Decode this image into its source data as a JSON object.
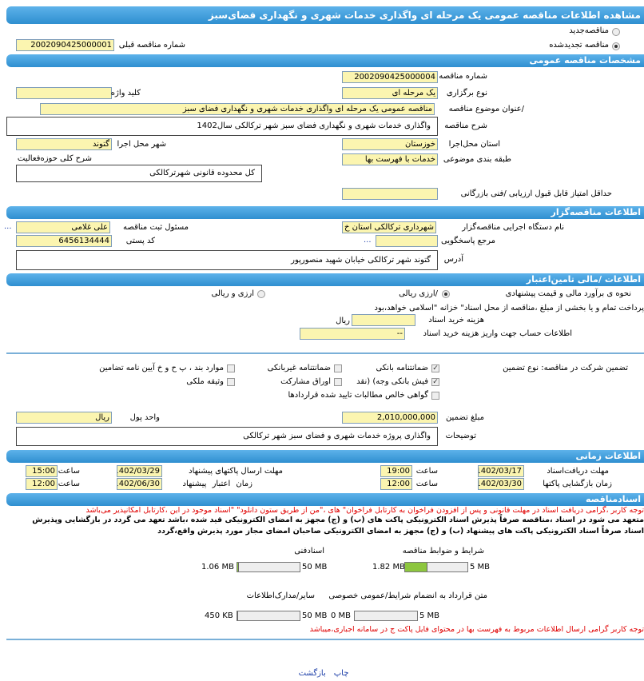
{
  "title": "مشاهده اطلاعات مناقصه عمومی یک مرحله ای واگذاری خدمات شهری و نگهداری فضای‌سبز",
  "tender_type": {
    "new_label": "مناقصه‌جدید",
    "renewed_label": "مناقصه تجدیدشده",
    "selected": "renewed",
    "prev_number_label": "شماره مناقصه قبلی",
    "prev_number": "2002090425000001"
  },
  "general": {
    "header": "مشخصات مناقصه عمومی",
    "number_label": "شماره مناقصه",
    "number": "2002090425000004",
    "holding_label": "نوع برگزاری",
    "holding": "یک مرحله ای",
    "keyword_label": "کلید واژه",
    "keyword": "",
    "subject_label": "/عنوان موضوع مناقصه",
    "subject": "مناقصه عمومی یک مرحله ای واگذاری خدمات شهری و نگهداری فضای سبز",
    "desc_label": "شرح مناقصه",
    "desc": "واگذاری خدمات شهری و نگهداری فضای سبز شهر ترکالکی سال1402",
    "province_label": "استان محل‌اجرا",
    "province": "خوزستان",
    "city_label": "شهر محل اجرا",
    "city": "گتوند",
    "category_label": "طبقه بندی موضوعی",
    "category": "خدمات با فهرست بها",
    "scope_label": "شرح کلی حوزه‌فعالیت",
    "scope": "کل محدوده قانونی شهرترکالکی",
    "min_score_label": "حداقل امتیاز قابل قبول ارزیابی /فنی بازرگانی",
    "min_score": ""
  },
  "organizer": {
    "header": "اطلاعات مناقصه‌گزار",
    "org_label": "نام دستگاه اجرایی مناقصه‌گزار",
    "org": "شهرداری ترکالکی استان خ",
    "responsible_label": "مسئول ثبت مناقصه",
    "responsible": "علی غلامی",
    "more": "...",
    "ref_label": "مرجع پاسخگویی",
    "ref": "",
    "postal_label": "کد پستی",
    "postal": "6456134444",
    "address_label": "آدرس",
    "address": "گتوند شهر ترکالکی خیابان شهید منصورپور"
  },
  "finance": {
    "header": "اطلاعات /مالی تامین‌اعتبار",
    "estimate_label": "نحوه ی برآورد مالی و قیمت پیشنهادی",
    "rial_label": "/ارزی ریالی",
    "fx_label": "ارزی و ریالی",
    "selected": "rial",
    "treasury_note": "پرداخت تمام و یا بخشی از مبلغ ،مناقصه از محل اسناد\" خزانه \"اسلامی خواهد،بود",
    "doc_cost_label": "هزینه خرید اسناد",
    "doc_cost": "",
    "doc_cost_unit": "ریال",
    "account_label": "اطلاعات حساب جهت واریز هزینه خرید اسناد",
    "account": "--",
    "guarantee_label": "تضمین شرکت در مناقصه: نوع تضمین",
    "guarantee_options": [
      {
        "label": "ضمانتنامه بانکی",
        "checked": true
      },
      {
        "label": "ضمانتنامه غیربانکی",
        "checked": false
      },
      {
        "label": "موارد بند ، پ ح و خ آیین نامه تضامین",
        "checked": false
      },
      {
        "label": "فیش بانکی وجه) (نقد",
        "checked": true
      },
      {
        "label": "اوراق مشارکت",
        "checked": false
      },
      {
        "label": "وثیقه ملکی",
        "checked": false
      },
      {
        "label": "گواهی خالص مطالبات تایید شده قراردادها",
        "checked": false
      }
    ],
    "amount_label": "مبلغ تضمین",
    "amount": "2,010,000,000",
    "currency_label": "واحد پول",
    "currency": "ریال",
    "notes_label": "توضیحات",
    "notes": "واگذاری پروژه خدمات شهری و فضای سبز شهر ترکالکی"
  },
  "timing": {
    "header": "اطلاعات زمانی",
    "doc_deadline_label": "مهلت دریافت‌اسناد",
    "doc_deadline_date": "1402/03/17",
    "doc_deadline_time": "19:00",
    "send_deadline_label": "مهلت ارسال پاکتهای پیشنهاد",
    "send_deadline_date": "1402/03/29",
    "send_deadline_time": "15:00",
    "opening_label": "زمان بازگشایی پاکتها",
    "opening_date": "1402/03/30",
    "opening_time": "12:00",
    "validity_label": "زمان اعتبار پیشنهاد",
    "validity_date": "1402/06/30",
    "validity_time": "12:00",
    "time_label": "ساعت"
  },
  "documents": {
    "header": "اسنادمناقصه",
    "red_note": "توجه کاربر ،گرامی دریافت اسناد در مهلت قانونی و پس از افزودن فراخوان به کارتابل فراخوان\" های ،\"من از طریق ستون دانلود\" \"اسناد موجود در این ،کارتابل امکانپذیر می‌باشد",
    "commit_line1": "متعهد می شود در اسناد ،مناقصه صرفاً پذیرش اسناد الکترونیکی پاکت های (ب) و (ج) مجهز به امضای الکترونیکی قید شده ،باشد تعهد می گردد در بازگشایی وپذیرش",
    "commit_line2": "اسناد صرفاً اسناد الکترونیکی پاکت های پیشنهاد (ب) و (ج) مجهز به امضای الکترونیکی صاحبان امضای مجاز مورد پذیرش واقع،گردد",
    "files": [
      {
        "label": "شرایط و ضوابط مناقصه",
        "size": "1.82 MB",
        "max": "5 MB",
        "fill": 0.364
      },
      {
        "label": "اسنادفنی",
        "size": "1.06 MB",
        "max": "50 MB",
        "fill": 0.021
      },
      {
        "label": "متن قرارداد به انضمام شرایط/عمومی خصوصی",
        "size": "0 MB",
        "max": "5 MB",
        "fill": 0
      },
      {
        "label": "سایر/مدارک‌اطلاعات",
        "size": "450 KB",
        "max": "50 MB",
        "fill": 0.009
      }
    ],
    "red_note2": "توجه کاربر گرامی ارسال اطلاعات مربوط به فهرست بها در محتوای فایل پاکت ج در سامانه اجباری،میباشد"
  },
  "footer": {
    "print": "چاپ",
    "back": "بازگشت"
  }
}
